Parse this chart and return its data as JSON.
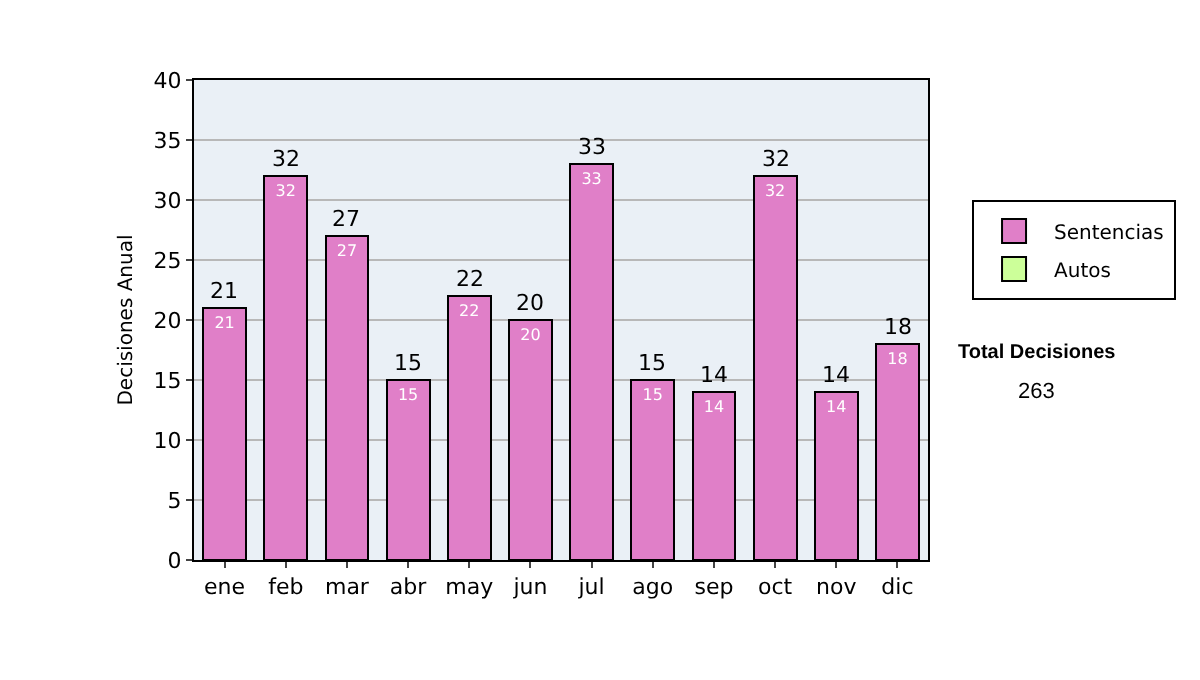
{
  "chart_data": {
    "type": "bar",
    "stacked": true,
    "ylabel": "Decisiones Anual",
    "categories": [
      "ene",
      "feb",
      "mar",
      "abr",
      "may",
      "jun",
      "jul",
      "ago",
      "sep",
      "oct",
      "nov",
      "dic"
    ],
    "series": [
      {
        "name": "Sentencias",
        "color": "#e07fc8",
        "values": [
          21,
          32,
          27,
          15,
          22,
          20,
          33,
          15,
          14,
          32,
          14,
          18
        ],
        "value_labels": [
          "21",
          "32",
          "27",
          "15",
          "22",
          "20",
          "33",
          "15",
          "14",
          "32",
          "14",
          "18"
        ]
      },
      {
        "name": "Autos",
        "color": "#ccff99",
        "values": [
          null,
          null,
          null,
          null,
          null,
          null,
          null,
          null,
          null,
          null,
          null,
          null
        ]
      }
    ],
    "totals": [
      "21",
      "32",
      "27",
      "15",
      "22",
      "20",
      "33",
      "15",
      "14",
      "32",
      "14",
      "18"
    ],
    "ylim": [
      0,
      40
    ],
    "yticks": [
      0,
      5,
      10,
      15,
      20,
      25,
      30,
      35,
      40
    ],
    "grid": "y",
    "legend": "right",
    "annotations": [
      "Total Decisiones",
      "263"
    ]
  }
}
